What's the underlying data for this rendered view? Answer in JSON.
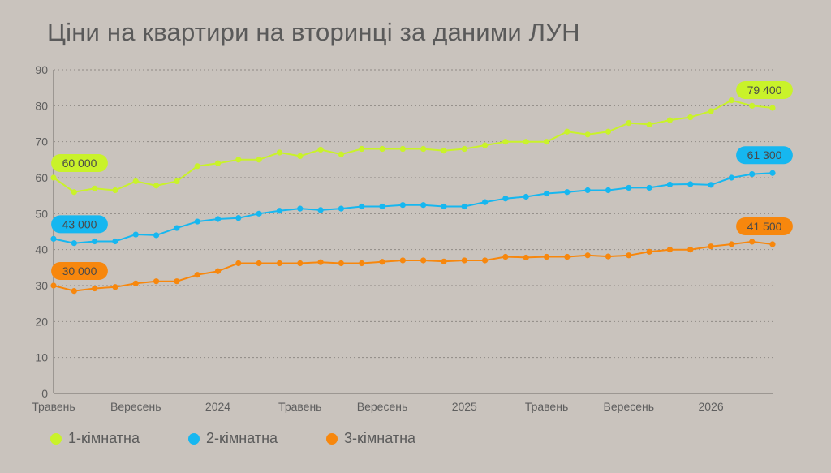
{
  "chart_data": {
    "type": "line",
    "title": "Ціни на квартири на вторинці за даними ЛУН",
    "ylim": [
      0,
      90
    ],
    "yticks": [
      0,
      10,
      20,
      30,
      40,
      50,
      60,
      70,
      80,
      90
    ],
    "grid": "horizontal dashed",
    "legend_position": "bottom-left",
    "x": [
      "2023-05",
      "2023-06",
      "2023-07",
      "2023-08",
      "2023-09",
      "2023-10",
      "2023-11",
      "2023-12",
      "2024-01",
      "2024-02",
      "2024-03",
      "2024-04",
      "2024-05",
      "2024-06",
      "2024-07",
      "2024-08",
      "2024-09",
      "2024-10",
      "2024-11",
      "2024-12",
      "2025-01",
      "2025-02",
      "2025-03",
      "2025-04",
      "2025-05",
      "2025-06",
      "2025-07",
      "2025-08",
      "2025-09",
      "2025-10",
      "2025-11",
      "2025-12",
      "2026-01",
      "2026-02",
      "2026-03",
      "2026-04"
    ],
    "xtick_labels": [
      {
        "label": "Травень",
        "at": "2023-05"
      },
      {
        "label": "Вересень",
        "at": "2023-09"
      },
      {
        "label": "2024",
        "at": "2024-01"
      },
      {
        "label": "Травень",
        "at": "2024-05"
      },
      {
        "label": "Вересень",
        "at": "2024-09"
      },
      {
        "label": "2025",
        "at": "2025-01"
      },
      {
        "label": "Травень",
        "at": "2025-05"
      },
      {
        "label": "Вересень",
        "at": "2025-09"
      },
      {
        "label": "2026",
        "at": "2026-01"
      }
    ],
    "series": [
      {
        "name": "1-кімнатна",
        "color": "#c9f22a",
        "values": [
          60.0,
          56.0,
          57.0,
          56.5,
          59.0,
          57.8,
          59.0,
          63.2,
          64.0,
          65.0,
          65.0,
          67.0,
          66.0,
          67.8,
          66.5,
          68.0,
          68.0,
          68.0,
          68.0,
          67.5,
          68.0,
          69.0,
          70.0,
          70.0,
          70.0,
          72.8,
          72.0,
          72.8,
          75.2,
          74.8,
          76.0,
          76.8,
          78.5,
          81.5,
          80.0,
          79.4
        ],
        "start_label": "60 000",
        "end_label": "79 400"
      },
      {
        "name": "2-кімнатна",
        "color": "#16b7f0",
        "values": [
          43.0,
          41.8,
          42.3,
          42.3,
          44.2,
          44.0,
          46.0,
          47.8,
          48.5,
          48.8,
          50.0,
          50.8,
          51.4,
          51.0,
          51.4,
          52.0,
          52.0,
          52.4,
          52.4,
          52.0,
          52.0,
          53.2,
          54.2,
          54.7,
          55.6,
          56.0,
          56.5,
          56.5,
          57.2,
          57.2,
          58.1,
          58.2,
          58.0,
          60.0,
          61.0,
          61.3
        ],
        "start_label": "43 000",
        "end_label": "61 300"
      },
      {
        "name": "3-кімнатна",
        "color": "#f7870d",
        "values": [
          30.0,
          28.5,
          29.2,
          29.6,
          30.6,
          31.2,
          31.2,
          33.0,
          34.0,
          36.2,
          36.2,
          36.2,
          36.2,
          36.5,
          36.2,
          36.2,
          36.6,
          37.0,
          37.0,
          36.7,
          37.0,
          37.0,
          38.0,
          37.8,
          38.0,
          38.0,
          38.4,
          38.1,
          38.4,
          39.4,
          40.0,
          40.0,
          40.9,
          41.5,
          42.2,
          41.5
        ],
        "start_label": "30 000",
        "end_label": "41 500"
      }
    ]
  }
}
